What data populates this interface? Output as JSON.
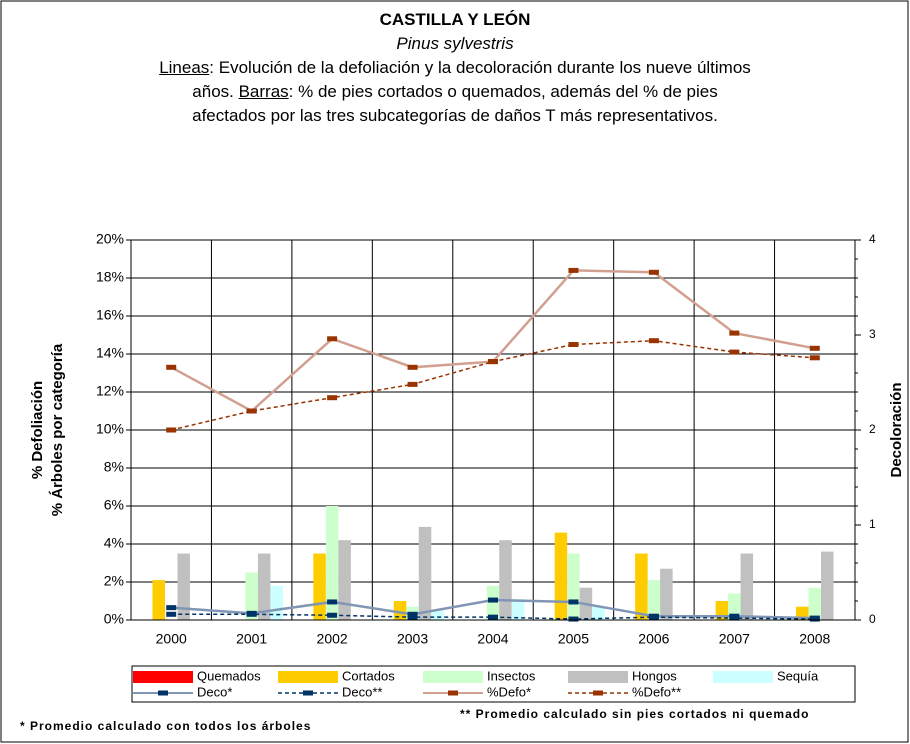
{
  "chart_data": {
    "type": "combo",
    "title": "CASTILLA Y LEÓN",
    "subtitle": "Pinus sylvestris",
    "description": [
      "Lineas",
      ": Evolución de la defoliación y la decoloración durante los nueve últimos",
      "años. ",
      "Barras",
      ": % de pies cortados o quemados, además del % de pies",
      "afectados por las tres subcategorías de daños T más representativos."
    ],
    "y_label": [
      "% Defoliación",
      "% Árboles por categoría"
    ],
    "y2_label": "Decoloración",
    "categories": [
      "2000",
      "2001",
      "2002",
      "2003",
      "2004",
      "2005",
      "2006",
      "2007",
      "2008"
    ],
    "ylim": [
      0,
      20
    ],
    "yticks": [
      {
        "value": 0,
        "label": "0%"
      },
      {
        "value": 2,
        "label": "2%"
      },
      {
        "value": 4,
        "label": "4%"
      },
      {
        "value": 6,
        "label": "6%"
      },
      {
        "value": 8,
        "label": "8%"
      },
      {
        "value": 10,
        "label": "10%"
      },
      {
        "value": 12,
        "label": "12%"
      },
      {
        "value": 14,
        "label": "14%"
      },
      {
        "value": 16,
        "label": "16%"
      },
      {
        "value": 18,
        "label": "18%"
      },
      {
        "value": 20,
        "label": "20%"
      }
    ],
    "y2lim": [
      0,
      4
    ],
    "y2ticks": [
      0,
      1,
      2,
      3,
      4
    ],
    "grid": true,
    "series": [
      {
        "name": "Quemados",
        "type": "bar",
        "color": "#ff0000",
        "values": [
          0,
          0,
          0,
          0,
          0,
          0,
          0,
          0,
          0
        ]
      },
      {
        "name": "Cortados",
        "type": "bar",
        "color": "#ffcc00",
        "values": [
          2.1,
          0,
          3.5,
          1.0,
          0,
          4.6,
          3.5,
          1.0,
          0.7
        ]
      },
      {
        "name": "Insectos",
        "type": "bar",
        "color": "#ccffcc",
        "values": [
          0,
          2.5,
          6.0,
          0.7,
          1.8,
          3.5,
          2.1,
          1.4,
          1.7
        ]
      },
      {
        "name": "Hongos",
        "type": "bar",
        "color": "#c0c0c0",
        "values": [
          3.5,
          3.5,
          4.2,
          4.9,
          4.2,
          1.7,
          2.7,
          3.5,
          3.6
        ]
      },
      {
        "name": "Sequía",
        "type": "bar",
        "color": "#ccffff",
        "values": [
          0,
          1.8,
          0,
          0.5,
          1.1,
          0.7,
          0,
          0,
          0
        ]
      },
      {
        "name": "Deco*",
        "type": "line",
        "axis": "y2",
        "color": "#8096b4",
        "marker_color": "#003366",
        "values": [
          0.13,
          0.07,
          0.19,
          0.06,
          0.21,
          0.19,
          0.04,
          0.04,
          0.02
        ]
      },
      {
        "name": "Deco**",
        "type": "line",
        "axis": "y2",
        "dashed": true,
        "color": "#003366",
        "marker_color": "#003366",
        "values": [
          0.06,
          0.06,
          0.05,
          0.03,
          0.03,
          0.01,
          0.03,
          0.02,
          0.01
        ]
      },
      {
        "name": "%Defo*",
        "type": "line",
        "color": "#d2a090",
        "marker_color": "#993300",
        "values": [
          13.3,
          11.0,
          14.8,
          13.3,
          13.6,
          18.4,
          18.3,
          15.1,
          14.3
        ]
      },
      {
        "name": "%Defo**",
        "type": "line",
        "dashed": true,
        "color": "#993300",
        "marker_color": "#993300",
        "values": [
          10.0,
          11.0,
          11.7,
          12.4,
          13.6,
          14.5,
          14.7,
          14.1,
          13.8
        ]
      }
    ],
    "footnotes": [
      "* Promedio calculado con todos los árboles",
      "** Promedio calculado sin pies cortados ni quemado"
    ]
  }
}
